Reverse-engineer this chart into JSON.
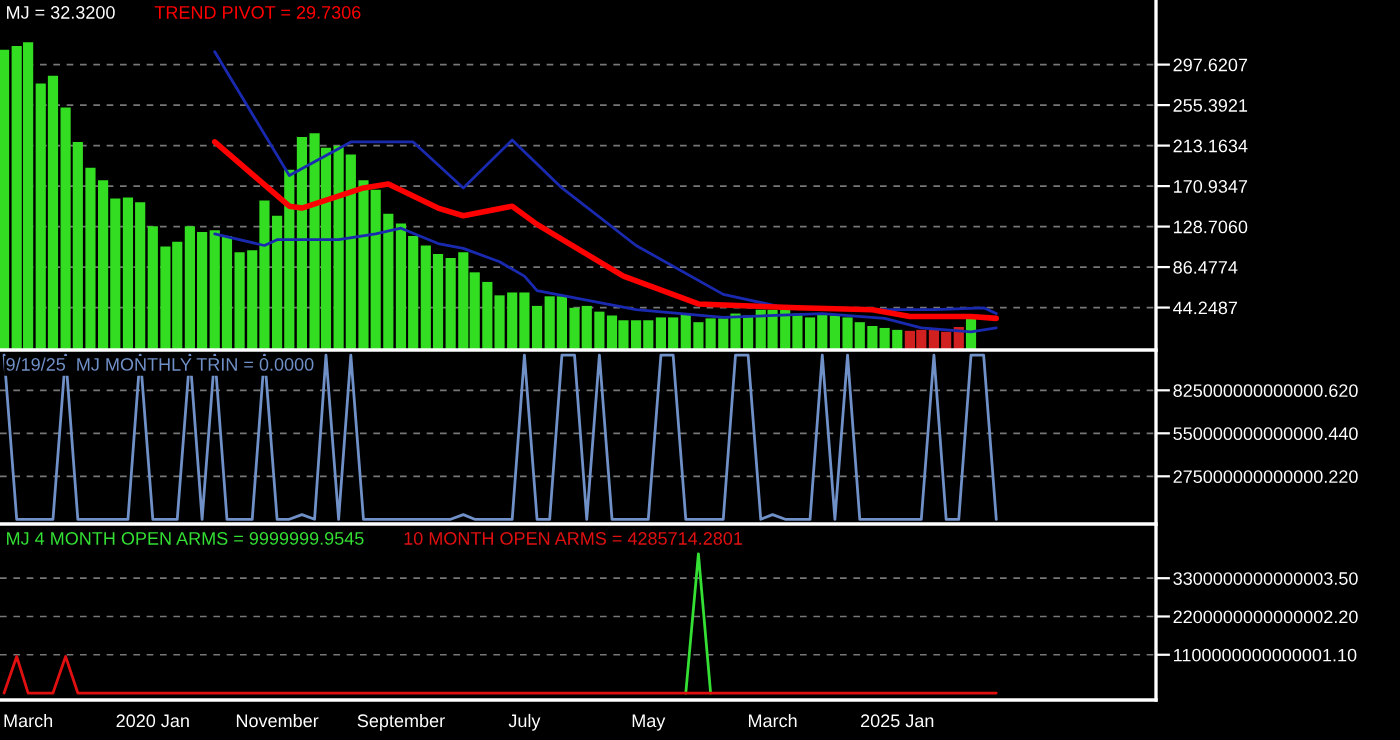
{
  "chart_data": [
    {
      "type": "bar",
      "tick_labels": "y",
      "grid": "y",
      "xlim": [
        "2018-12-22",
        "2026-09-28"
      ],
      "ylim": [
        0,
        365
      ],
      "yticks": [
        {
          "value": 297.6207,
          "label": "297.6207"
        },
        {
          "value": 255.3921,
          "label": "255.3921"
        },
        {
          "value": 213.1634,
          "label": "213.1634"
        },
        {
          "value": 170.9347,
          "label": "170.9347"
        },
        {
          "value": 128.706,
          "label": "128.7060"
        },
        {
          "value": 86.4774,
          "label": "86.4774"
        },
        {
          "value": 44.2487,
          "label": "44.2487"
        }
      ],
      "series": [
        {
          "name": "MJ = 32.3200",
          "type": "bar",
          "x": [
            "2019-01",
            "2019-02",
            "2019-03",
            "2019-04",
            "2019-05",
            "2019-06",
            "2019-07",
            "2019-08",
            "2019-09",
            "2019-10",
            "2019-11",
            "2019-12",
            "2020-01",
            "2020-02",
            "2020-03",
            "2020-04",
            "2020-05",
            "2020-06",
            "2020-07",
            "2020-08",
            "2020-09",
            "2020-10",
            "2020-11",
            "2020-12",
            "2021-01",
            "2021-02",
            "2021-03",
            "2021-04",
            "2021-05",
            "2021-06",
            "2021-07",
            "2021-08",
            "2021-09",
            "2021-10",
            "2021-11",
            "2021-12",
            "2022-01",
            "2022-02",
            "2022-03",
            "2022-04",
            "2022-05",
            "2022-06",
            "2022-07",
            "2022-08",
            "2022-09",
            "2022-10",
            "2022-11",
            "2022-12",
            "2023-01",
            "2023-02",
            "2023-03",
            "2023-04",
            "2023-05",
            "2023-06",
            "2023-07",
            "2023-08",
            "2023-09",
            "2023-10",
            "2023-11",
            "2023-12",
            "2024-01",
            "2024-02",
            "2024-03",
            "2024-04",
            "2024-05",
            "2024-06",
            "2024-07",
            "2024-08",
            "2024-09",
            "2024-10",
            "2024-11",
            "2024-12",
            "2025-01",
            "2025-02",
            "2025-03",
            "2025-04",
            "2025-05",
            "2025-06",
            "2025-07"
          ],
          "values": [
            313,
            317,
            321,
            278,
            286,
            253,
            217,
            190,
            177,
            158,
            159,
            154,
            129,
            108,
            113,
            129,
            123,
            125,
            119,
            102,
            104,
            156,
            140,
            188,
            222,
            226,
            211,
            213,
            204,
            177,
            167,
            142,
            132,
            119,
            109,
            100,
            96,
            102,
            81,
            71,
            57,
            60,
            60,
            46,
            56,
            56,
            44,
            46,
            40,
            36,
            31,
            31,
            31,
            34,
            34,
            38,
            29,
            33,
            33,
            38,
            36,
            42,
            42,
            42,
            38,
            34,
            38,
            36,
            34,
            29,
            25,
            23,
            21,
            20,
            21,
            21,
            19,
            24,
            33
          ],
          "colors": [
            "#33dd22",
            "#33dd22",
            "#33dd22",
            "#33dd22",
            "#33dd22",
            "#33dd22",
            "#33dd22",
            "#33dd22",
            "#33dd22",
            "#33dd22",
            "#33dd22",
            "#33dd22",
            "#33dd22",
            "#33dd22",
            "#33dd22",
            "#33dd22",
            "#33dd22",
            "#33dd22",
            "#33dd22",
            "#33dd22",
            "#33dd22",
            "#33dd22",
            "#33dd22",
            "#33dd22",
            "#33dd22",
            "#33dd22",
            "#33dd22",
            "#33dd22",
            "#33dd22",
            "#33dd22",
            "#33dd22",
            "#33dd22",
            "#33dd22",
            "#33dd22",
            "#33dd22",
            "#33dd22",
            "#33dd22",
            "#33dd22",
            "#33dd22",
            "#33dd22",
            "#33dd22",
            "#33dd22",
            "#33dd22",
            "#33dd22",
            "#33dd22",
            "#33dd22",
            "#33dd22",
            "#33dd22",
            "#33dd22",
            "#33dd22",
            "#33dd22",
            "#33dd22",
            "#33dd22",
            "#33dd22",
            "#33dd22",
            "#33dd22",
            "#33dd22",
            "#33dd22",
            "#33dd22",
            "#33dd22",
            "#33dd22",
            "#33dd22",
            "#33dd22",
            "#33dd22",
            "#33dd22",
            "#33dd22",
            "#33dd22",
            "#33dd22",
            "#33dd22",
            "#33dd22",
            "#33dd22",
            "#33dd22",
            "#33dd22",
            "#d02020",
            "#d02020",
            "#d02020",
            "#d02020",
            "#d02020",
            "#33dd22"
          ]
        },
        {
          "type": "line",
          "color": "#1a2ab0",
          "x": [
            "2020-06",
            "2020-12",
            "2021-05",
            "2021-10",
            "2022-02",
            "2022-06",
            "2022-10",
            "2023-04",
            "2023-11",
            "2024-04",
            "2024-11",
            "2025-04",
            "2025-08",
            "2025-09"
          ],
          "values": [
            311,
            182,
            217,
            217,
            169,
            219,
            169,
            109,
            58,
            44,
            42,
            42,
            44,
            38
          ]
        },
        {
          "name": "TREND PIVOT = 29.7306",
          "type": "line",
          "color": "#ff0000",
          "x": [
            "2020-06",
            "2020-12",
            "2021-01",
            "2021-06",
            "2021-08",
            "2021-12",
            "2022-02",
            "2022-06",
            "2022-08",
            "2023-03",
            "2023-09",
            "2024-05",
            "2024-11",
            "2025-02",
            "2025-07",
            "2025-09"
          ],
          "values": [
            217,
            150,
            148,
            169,
            173,
            148,
            140,
            150,
            131,
            77,
            48,
            44,
            42,
            35,
            35,
            33
          ]
        },
        {
          "type": "line",
          "color": "#1a2ab0",
          "x": [
            "2020-06",
            "2020-10",
            "2020-11",
            "2021-04",
            "2021-07",
            "2021-09",
            "2021-12",
            "2022-02",
            "2022-05",
            "2022-07",
            "2022-08",
            "2023-04",
            "2023-11",
            "2024-07",
            "2024-12",
            "2025-03",
            "2025-07",
            "2025-09"
          ],
          "values": [
            121,
            109,
            115,
            115,
            121,
            127,
            111,
            106,
            92,
            77,
            62,
            42,
            34,
            38,
            33,
            23,
            19,
            23
          ]
        }
      ]
    },
    {
      "type": "line",
      "tick_labels": "y",
      "grid": "y",
      "xlim": [
        "2018-12-22",
        "2026-09-28"
      ],
      "ylim": [
        -30000000000000.0,
        1070000000000000.0
      ],
      "yticks": [
        {
          "value": 825000000000000.6,
          "label": "825000000000000.620"
        },
        {
          "value": 550000000000000.44,
          "label": "550000000000000.440"
        },
        {
          "value": 275000000000000.22,
          "label": "275000000000000.220"
        }
      ],
      "x": [
        "2019-01",
        "2019-02",
        "2019-03",
        "2019-04",
        "2019-05",
        "2019-06",
        "2019-07",
        "2019-08",
        "2019-09",
        "2019-10",
        "2019-11",
        "2019-12",
        "2020-01",
        "2020-02",
        "2020-03",
        "2020-04",
        "2020-05",
        "2020-06",
        "2020-07",
        "2020-08",
        "2020-09",
        "2020-10",
        "2020-11",
        "2020-12",
        "2021-01",
        "2021-02",
        "2021-03",
        "2021-04",
        "2021-05",
        "2021-06",
        "2021-07",
        "2021-08",
        "2021-09",
        "2021-10",
        "2021-11",
        "2021-12",
        "2022-01",
        "2022-02",
        "2022-03",
        "2022-04",
        "2022-05",
        "2022-06",
        "2022-07",
        "2022-08",
        "2022-09",
        "2022-10",
        "2022-11",
        "2022-12",
        "2023-01",
        "2023-02",
        "2023-03",
        "2023-04",
        "2023-05",
        "2023-06",
        "2023-07",
        "2023-08",
        "2023-09",
        "2023-10",
        "2023-11",
        "2023-12",
        "2024-01",
        "2024-02",
        "2024-03",
        "2024-04",
        "2024-05",
        "2024-06",
        "2024-07",
        "2024-08",
        "2024-09",
        "2024-10",
        "2024-11",
        "2024-12",
        "2025-01",
        "2025-02",
        "2025-03",
        "2025-04",
        "2025-05",
        "2025-06",
        "2025-07",
        "2025-08",
        "2025-09"
      ],
      "series": [
        {
          "name": "9/19/25  MJ MONTHLY TRIN = 0.0000",
          "color": "#7090c8",
          "values": [
            1050000000000000.0,
            0,
            0,
            0,
            0,
            1050000000000000.0,
            0,
            0,
            0,
            0,
            0,
            1050000000000000.0,
            0,
            0,
            0,
            1050000000000000.0,
            0,
            1050000000000000.0,
            0,
            0,
            0,
            1050000000000000.0,
            0,
            0,
            30000000000000.0,
            0,
            1050000000000000.0,
            0,
            1050000000000000.0,
            0,
            0,
            0,
            0,
            0,
            0,
            0,
            0,
            30000000000000.0,
            0,
            0,
            0,
            0,
            1050000000000000.0,
            0,
            0,
            1050000000000000.0,
            1050000000000000.0,
            0,
            1050000000000000.0,
            0,
            0,
            0,
            0,
            1050000000000000.0,
            1050000000000000.0,
            0,
            0,
            0,
            0,
            1050000000000000.0,
            1050000000000000.0,
            0,
            30000000000000.0,
            0,
            0,
            0,
            1050000000000000.0,
            0,
            1050000000000000.0,
            0,
            0,
            0,
            0,
            0,
            0,
            1050000000000000.0,
            0,
            0,
            1050000000000000.0,
            1050000000000000.0,
            0
          ]
        }
      ]
    },
    {
      "type": "line",
      "grid": "y",
      "xlim": [
        "2018-12-22",
        "2026-09-28"
      ],
      "ylim": [
        -200000000000000.0,
        4800000000000000.0
      ],
      "yticks": [
        {
          "value": 3300000000000003.5,
          "label": "3300000000000003.50"
        },
        {
          "value": 2200000000000002.2,
          "label": "2200000000000002.20"
        },
        {
          "value": 1100000000000001.1,
          "label": "1100000000000001.10"
        }
      ],
      "xticks": [
        {
          "value": "2019-03",
          "label": "March"
        },
        {
          "value": "2020-01",
          "label": "2020 Jan"
        },
        {
          "value": "2020-11",
          "label": "November"
        },
        {
          "value": "2021-09",
          "label": "September"
        },
        {
          "value": "2022-07",
          "label": "July"
        },
        {
          "value": "2023-05",
          "label": "May"
        },
        {
          "value": "2024-03",
          "label": "March"
        },
        {
          "value": "2025-01",
          "label": "2025 Jan"
        }
      ],
      "x": [
        "2019-01",
        "2019-02",
        "2019-03",
        "2019-04",
        "2019-05",
        "2019-06",
        "2019-07",
        "2019-08",
        "2019-09",
        "2019-10",
        "2019-11",
        "2019-12",
        "2020-01",
        "2020-02",
        "2020-03",
        "2020-04",
        "2020-05",
        "2020-06",
        "2020-07",
        "2020-08",
        "2020-09",
        "2020-10",
        "2020-11",
        "2020-12",
        "2021-01",
        "2021-02",
        "2021-03",
        "2021-04",
        "2021-05",
        "2021-06",
        "2021-07",
        "2021-08",
        "2021-09",
        "2021-10",
        "2021-11",
        "2021-12",
        "2022-01",
        "2022-02",
        "2022-03",
        "2022-04",
        "2022-05",
        "2022-06",
        "2022-07",
        "2022-08",
        "2022-09",
        "2022-10",
        "2022-11",
        "2022-12",
        "2023-01",
        "2023-02",
        "2023-03",
        "2023-04",
        "2023-05",
        "2023-06",
        "2023-07",
        "2023-08",
        "2023-09",
        "2023-10",
        "2023-11",
        "2023-12",
        "2024-01",
        "2024-02",
        "2024-03",
        "2024-04",
        "2024-05",
        "2024-06",
        "2024-07",
        "2024-08",
        "2024-09",
        "2024-10",
        "2024-11",
        "2024-12",
        "2025-01",
        "2025-02",
        "2025-03",
        "2025-04",
        "2025-05",
        "2025-06",
        "2025-07",
        "2025-08",
        "2025-09"
      ],
      "series": [
        {
          "name": "MJ 4 MONTH OPEN ARMS = 9999999.9545",
          "color": "#33e033",
          "values": [
            null,
            null,
            null,
            null,
            null,
            null,
            null,
            null,
            null,
            null,
            null,
            null,
            null,
            null,
            null,
            null,
            null,
            null,
            null,
            null,
            null,
            null,
            null,
            null,
            null,
            null,
            null,
            null,
            null,
            null,
            null,
            null,
            null,
            null,
            null,
            null,
            null,
            null,
            null,
            null,
            null,
            null,
            null,
            null,
            null,
            null,
            null,
            null,
            null,
            null,
            null,
            null,
            null,
            null,
            null,
            0,
            4000000000000000.0,
            0,
            null,
            null,
            null,
            null,
            null,
            null,
            null,
            null,
            null,
            null,
            null,
            null,
            null,
            null,
            null,
            null,
            null,
            null,
            null,
            null,
            null,
            null,
            null
          ]
        },
        {
          "name": "10 MONTH OPEN ARMS = 4285714.2801",
          "color": "#e01010",
          "values": [
            0,
            1050000000000000.0,
            0,
            0,
            0,
            1050000000000000.0,
            0,
            0,
            0,
            0,
            0,
            0,
            0,
            0,
            0,
            0,
            0,
            0,
            0,
            0,
            0,
            0,
            0,
            0,
            0,
            0,
            0,
            0,
            0,
            0,
            0,
            0,
            0,
            0,
            0,
            0,
            0,
            0,
            0,
            0,
            0,
            0,
            0,
            0,
            0,
            0,
            0,
            0,
            0,
            0,
            0,
            0,
            0,
            0,
            0,
            0,
            0,
            0,
            0,
            0,
            0,
            0,
            0,
            0,
            0,
            0,
            0,
            0,
            0,
            0,
            0,
            0,
            0,
            0,
            0,
            0,
            0,
            0,
            0,
            0,
            0
          ]
        }
      ]
    }
  ]
}
